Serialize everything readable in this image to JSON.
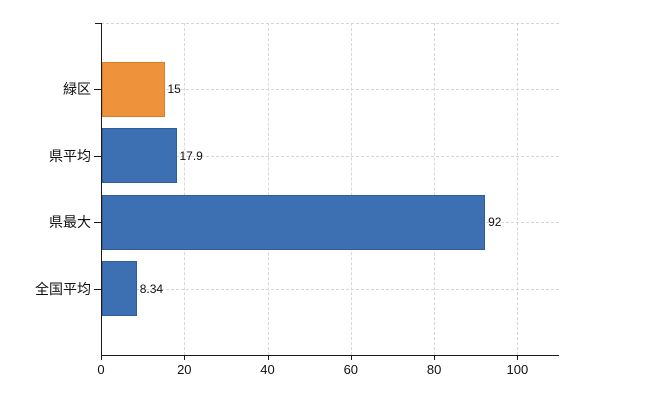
{
  "chart_data": {
    "type": "bar",
    "orientation": "horizontal",
    "title": "",
    "xlabel": "",
    "ylabel": "",
    "categories": [
      "緑区",
      "県平均",
      "県最大",
      "全国平均"
    ],
    "values": [
      15,
      17.9,
      92,
      8.34
    ],
    "value_labels": [
      "15",
      "17.9",
      "92",
      "8.34"
    ],
    "bar_colors": [
      "#ee933c",
      "#3d70b2",
      "#3d70b2",
      "#3d70b2"
    ],
    "bar_border_colors": [
      "#dd7e22",
      "#2e5d9e",
      "#2e5d9e",
      "#2e5d9e"
    ],
    "xticks": [
      0,
      20,
      40,
      60,
      80,
      100
    ],
    "xtick_labels": [
      "0",
      "20",
      "40",
      "60",
      "80",
      "100"
    ],
    "xlim": [
      0,
      110
    ],
    "grid": "on",
    "grid_style": "dashed",
    "legend": "none",
    "colors": {
      "grid": "#d7d7d7",
      "axis": "#1a1a1a",
      "text": "#111111",
      "background": "#ffffff"
    }
  }
}
